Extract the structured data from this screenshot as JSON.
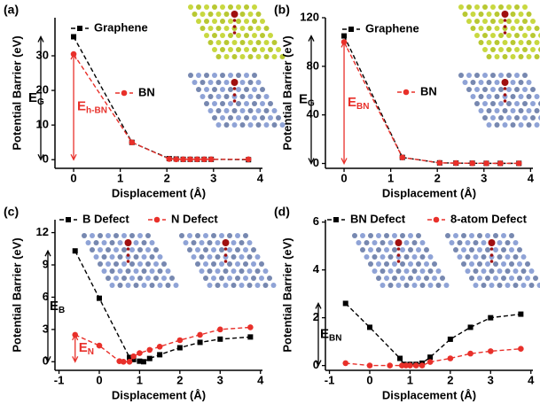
{
  "chart_data": [
    {
      "type": "line",
      "panel_label": "(a)",
      "x_label": "Displacement (Å)",
      "y_label": "Potential Barrier (eV)",
      "xlim": [
        -0.4,
        4.05
      ],
      "ylim": [
        -2.5,
        41
      ],
      "xticks": [
        0,
        1,
        2,
        3,
        4
      ],
      "yticks": [
        0,
        10,
        20,
        30
      ],
      "series": [
        {
          "name": "Graphene",
          "color": "#000000",
          "marker": "square",
          "x": [
            0,
            1.25,
            2.05,
            2.2,
            2.35,
            2.5,
            2.65,
            2.8,
            2.95,
            3.75
          ],
          "values": [
            35.5,
            5,
            0.3,
            0.2,
            0.1,
            0.1,
            0.1,
            0.1,
            0.1,
            0
          ]
        },
        {
          "name": "BN",
          "color": "#e8302a",
          "marker": "circle",
          "x": [
            0,
            1.25,
            2.05,
            2.2,
            2.35,
            2.5,
            2.65,
            2.8,
            2.95,
            3.75
          ],
          "values": [
            30.5,
            5,
            0.2,
            0.1,
            0.1,
            0.1,
            0.1,
            0.1,
            0.1,
            0.1
          ]
        }
      ],
      "annotations": [
        {
          "text": "E",
          "sub": "G"
        },
        {
          "text": "E",
          "sub": "h-BN"
        }
      ]
    },
    {
      "type": "line",
      "panel_label": "(b)",
      "x_label": "Displacement (Å)",
      "y_label": "Potential Barrier (eV)",
      "xlim": [
        -0.4,
        4.05
      ],
      "ylim": [
        -4,
        120
      ],
      "xticks": [
        0,
        1,
        2,
        3,
        4
      ],
      "yticks": [
        0,
        40,
        80,
        120
      ],
      "series": [
        {
          "name": "Graphene",
          "color": "#000000",
          "marker": "square",
          "x": [
            0,
            1.25,
            2.05,
            2.4,
            2.75,
            3.05,
            3.35,
            3.75
          ],
          "values": [
            105,
            5,
            0.5,
            0.3,
            0.2,
            0.1,
            0.1,
            0.1
          ]
        },
        {
          "name": "BN",
          "color": "#e8302a",
          "marker": "circle",
          "x": [
            0,
            1.25,
            2.05,
            2.4,
            2.75,
            3.05,
            3.35,
            3.75
          ],
          "values": [
            100,
            5,
            0.5,
            0.3,
            0.2,
            0.1,
            0.1,
            0.1
          ]
        }
      ],
      "annotations": [
        {
          "text": "E",
          "sub": "G"
        },
        {
          "text": "E",
          "sub": "BN"
        }
      ]
    },
    {
      "type": "line",
      "panel_label": "(c)",
      "x_label": "Displacement (Å)",
      "y_label": "Potential Barrier (eV)",
      "xlim": [
        -1.1,
        4.05
      ],
      "ylim": [
        -0.8,
        13.2
      ],
      "xticks": [
        -1,
        0,
        1,
        2,
        3,
        4
      ],
      "yticks": [
        0,
        3,
        6,
        9,
        12
      ],
      "series": [
        {
          "name": "B Defect",
          "color": "#000000",
          "marker": "square",
          "x": [
            -0.6,
            0,
            0.75,
            0.85,
            1.0,
            1.1,
            1.25,
            1.5,
            2.0,
            2.5,
            3.0,
            3.75
          ],
          "values": [
            10.3,
            5.9,
            0.4,
            0.2,
            0.05,
            0,
            0.3,
            0.65,
            1.3,
            1.8,
            2.1,
            2.3
          ]
        },
        {
          "name": "N Defect",
          "color": "#e8302a",
          "marker": "circle",
          "x": [
            -0.6,
            0,
            0.5,
            0.6,
            0.75,
            0.85,
            1.0,
            1.25,
            1.5,
            2.0,
            2.5,
            3.0,
            3.75
          ],
          "values": [
            2.5,
            1.5,
            0.05,
            0,
            0,
            0.5,
            0.8,
            1.1,
            1.4,
            2.0,
            2.5,
            3.0,
            3.2
          ]
        }
      ],
      "annotations": [
        {
          "text": "E",
          "sub": "B"
        },
        {
          "text": "E",
          "sub": "N"
        }
      ]
    },
    {
      "type": "line",
      "panel_label": "(d)",
      "x_label": "Displacement (Å)",
      "y_label": "Potential Barrier (eV)",
      "xlim": [
        -1.1,
        4.05
      ],
      "ylim": [
        -0.2,
        6.1
      ],
      "xticks": [
        -1,
        0,
        1,
        2,
        3,
        4
      ],
      "yticks": [
        0,
        2,
        4,
        6
      ],
      "series": [
        {
          "name": "BN Defect",
          "color": "#000000",
          "marker": "square",
          "x": [
            -0.6,
            0,
            0.75,
            0.85,
            1.0,
            1.15,
            1.3,
            1.5,
            2.0,
            2.5,
            3.0,
            3.75
          ],
          "values": [
            2.6,
            1.6,
            0.3,
            0.05,
            0.05,
            0.05,
            0.1,
            0.35,
            1.1,
            1.6,
            2.0,
            2.15
          ]
        },
        {
          "name": "8-atom Defect",
          "color": "#e8302a",
          "marker": "circle",
          "x": [
            -0.6,
            0,
            0.5,
            0.8,
            0.9,
            1.0,
            1.15,
            1.3,
            1.5,
            2.0,
            2.5,
            3.0,
            3.75
          ],
          "values": [
            0.1,
            0,
            0,
            0,
            0,
            0,
            0,
            0,
            0.15,
            0.3,
            0.5,
            0.6,
            0.7
          ]
        }
      ],
      "annotations": [
        {
          "text": "E",
          "sub": "BN"
        }
      ]
    }
  ]
}
